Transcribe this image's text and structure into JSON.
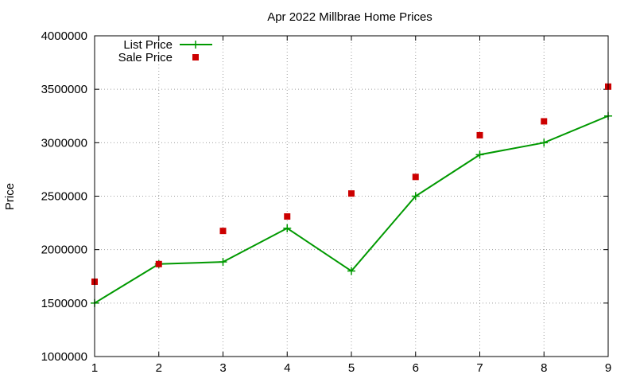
{
  "chart_data": {
    "type": "line",
    "title": "Apr 2022 Millbrae Home Prices",
    "xlabel": "",
    "ylabel": "Price",
    "x": [
      1,
      2,
      3,
      4,
      5,
      6,
      7,
      8,
      9
    ],
    "xlim": [
      1,
      9
    ],
    "ylim": [
      1000000,
      4000000
    ],
    "xticks": [
      "1",
      "2",
      "3",
      "4",
      "5",
      "6",
      "7",
      "8",
      "9"
    ],
    "yticks": [
      "1000000",
      "1500000",
      "2000000",
      "2500000",
      "3000000",
      "3500000",
      "4000000"
    ],
    "grid": true,
    "legend_position": "top-left",
    "series": [
      {
        "name": "List Price",
        "style": "line-with-plus-markers",
        "color": "#009900",
        "values": [
          1500000,
          1865000,
          1885000,
          2200000,
          1800000,
          2500000,
          2888000,
          3000000,
          3250000
        ]
      },
      {
        "name": "Sale Price",
        "style": "square-markers",
        "color": "#cc0000",
        "values": [
          1700000,
          1865000,
          2175000,
          2310000,
          2525000,
          2680000,
          3070000,
          3200000,
          3525000
        ]
      }
    ]
  }
}
